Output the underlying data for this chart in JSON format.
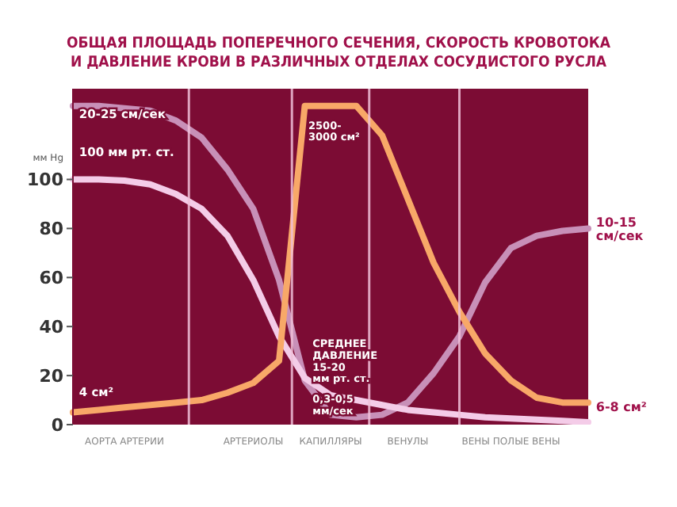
{
  "chart_data": {
    "type": "line",
    "title": "ОБЩАЯ ПЛОЩАДЬ ПОПЕРЕЧНОГО СЕЧЕНИЯ, СКОРОСТЬ КРОВОТОКА\nИ ДАВЛЕНИЕ КРОВИ В РАЗЛИЧНЫХ ОТДЕЛАХ СОСУДИСТОГО РУСЛА",
    "ylabel": "мм Hg",
    "categories": [
      null,
      null,
      "АОРТА  АРТЕРИИ",
      null,
      null,
      null,
      null,
      "АРТЕРИОЛЫ",
      null,
      null,
      "КАПИЛЛЯРЫ",
      null,
      null,
      "ВЕНУЛЫ",
      null,
      null,
      null,
      "ВЕНЫ  ПОЛЫЕ ВЕНЫ",
      null,
      null,
      null
    ],
    "ylim": [
      0,
      137
    ],
    "yticks": [
      0,
      20,
      40,
      60,
      80,
      100
    ],
    "marker": "none",
    "line_style": "solid",
    "series": [
      {
        "color": "#c890b8",
        "values": [
          130,
          130,
          129,
          128,
          124,
          117,
          104,
          88,
          59,
          18,
          4,
          3,
          4,
          9,
          21,
          36,
          58,
          72,
          77,
          79,
          80
        ]
      },
      {
        "color": "#f4cce8",
        "values": [
          100,
          100,
          99.5,
          98,
          94,
          88,
          77,
          59,
          36,
          19,
          12,
          10,
          8,
          6,
          5,
          4,
          3,
          2.5,
          2,
          1.5,
          1
        ]
      },
      {
        "color": "#f8a868",
        "values": [
          5,
          6,
          7,
          8,
          9,
          10,
          13,
          17,
          26,
          130,
          130,
          130,
          118,
          92,
          66,
          46,
          29,
          18,
          11,
          9,
          9
        ]
      }
    ],
    "annotations": [
      "20-25 см/сек",
      "100 мм рт. ст.",
      "4 см²",
      "2500-\n3000 см²",
      "СРЕДНЕЕ\nДАВЛЕНИЕ\n15-20\nмм рт. ст.",
      "0,3-0,5\nмм/сек",
      "10-15\nсм/сек",
      "6-8 см²"
    ]
  }
}
